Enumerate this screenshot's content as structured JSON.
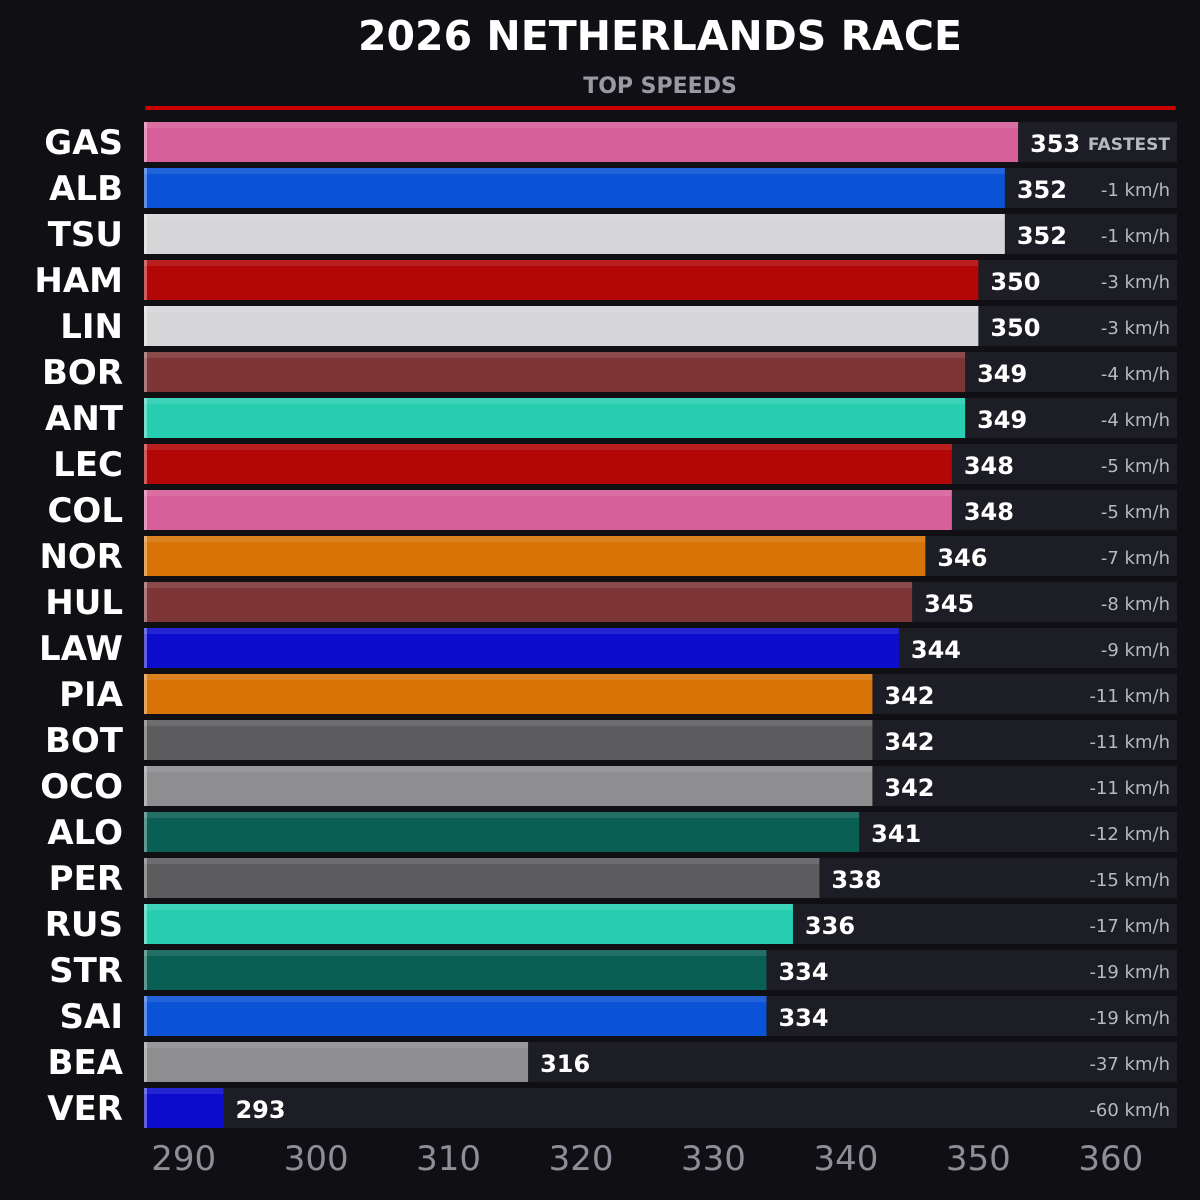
{
  "chart_data": {
    "type": "bar",
    "orientation": "horizontal",
    "title": "2026 NETHERLANDS RACE",
    "subtitle": "TOP SPEEDS",
    "unit": "km/h",
    "xlim": [
      287,
      365
    ],
    "xticks": [
      290,
      300,
      310,
      320,
      330,
      340,
      350,
      360
    ],
    "grid": false,
    "categories": [
      "GAS",
      "ALB",
      "TSU",
      "HAM",
      "LIN",
      "BOR",
      "ANT",
      "LEC",
      "COL",
      "NOR",
      "HUL",
      "LAW",
      "PIA",
      "BOT",
      "OCO",
      "ALO",
      "PER",
      "RUS",
      "STR",
      "SAI",
      "BEA",
      "VER"
    ],
    "values": [
      353,
      352,
      352,
      350,
      350,
      349,
      349,
      348,
      348,
      346,
      345,
      344,
      342,
      342,
      342,
      341,
      338,
      336,
      334,
      334,
      316,
      293
    ],
    "deltas": [
      "FASTEST",
      "-1 km/h",
      "-1 km/h",
      "-3 km/h",
      "-3 km/h",
      "-4 km/h",
      "-4 km/h",
      "-5 km/h",
      "-5 km/h",
      "-7 km/h",
      "-8 km/h",
      "-9 km/h",
      "-11 km/h",
      "-11 km/h",
      "-11 km/h",
      "-12 km/h",
      "-15 km/h",
      "-17 km/h",
      "-19 km/h",
      "-19 km/h",
      "-37 km/h",
      "-60 km/h"
    ],
    "colors": [
      "#d75f9a",
      "#0a52d6",
      "#d6d6d8",
      "#b30606",
      "#d6d6d8",
      "#7d3536",
      "#27ceb2",
      "#b30606",
      "#d75f9a",
      "#d77307",
      "#7d3536",
      "#0c0ccd",
      "#d77307",
      "#5d5d5f",
      "#8e8e90",
      "#0a5f55",
      "#5d5d5f",
      "#27ceb2",
      "#0a5f55",
      "#0a52d6",
      "#8e8e90",
      "#0c0ccd"
    ],
    "accent_line_color": "#cc0000",
    "track_color": "#1d1d25"
  }
}
